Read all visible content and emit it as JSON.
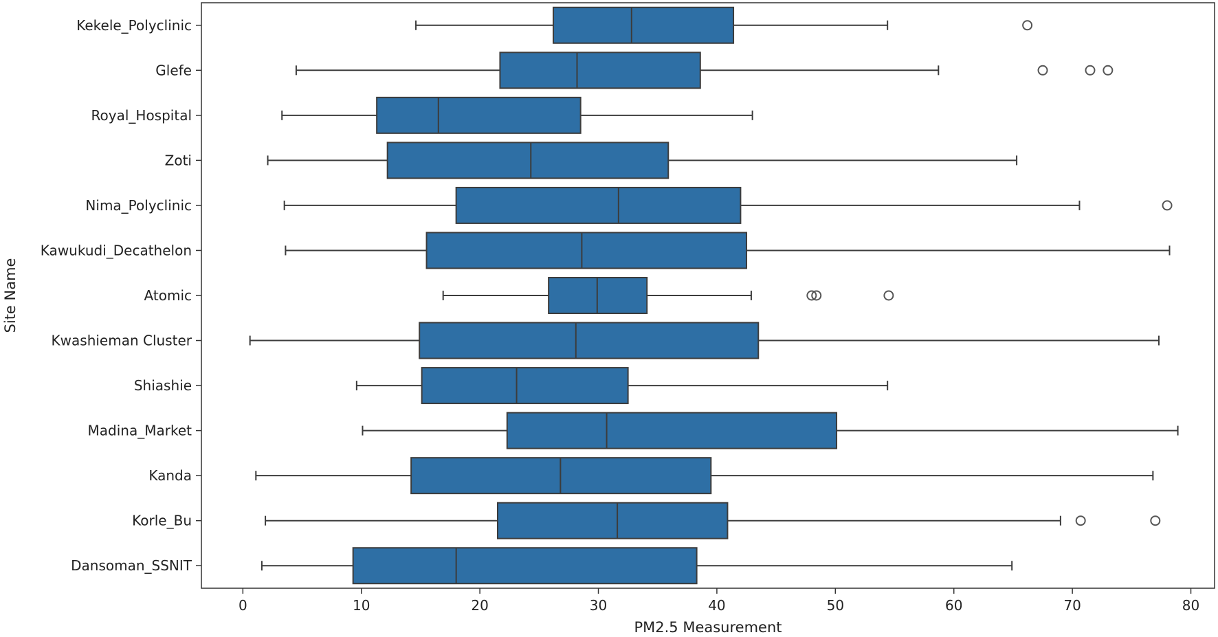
{
  "chart_data": {
    "type": "boxplot",
    "orientation": "horizontal",
    "xlabel": "PM2.5 Measurement",
    "ylabel": "Site Name",
    "xlim": [
      -3.5,
      82
    ],
    "xticks": [
      0,
      10,
      20,
      30,
      40,
      50,
      60,
      70,
      80
    ],
    "grid": false,
    "colors": {
      "box": "#2e6fa5",
      "line": "#3c3c3c",
      "outlier": "#555555"
    },
    "categories": [
      "Kekele_Polyclinic",
      "Glefe",
      "Royal_Hospital",
      "Zoti",
      "Nima_Polyclinic",
      "Kawukudi_Decathelon",
      "Atomic",
      "Kwashieman Cluster",
      "Shiashie",
      "Madina_Market",
      "Kanda",
      "Korle_Bu",
      "Dansoman_SSNIT"
    ],
    "boxes": [
      {
        "whisker_low": 14.6,
        "q1": 26.2,
        "median": 32.8,
        "q3": 41.4,
        "whisker_high": 54.4,
        "outliers": [
          66.2
        ]
      },
      {
        "whisker_low": 4.5,
        "q1": 21.7,
        "median": 28.2,
        "q3": 38.6,
        "whisker_high": 58.7,
        "outliers": [
          67.5,
          71.5,
          73.0
        ]
      },
      {
        "whisker_low": 3.3,
        "q1": 11.3,
        "median": 16.5,
        "q3": 28.5,
        "whisker_high": 43.0,
        "outliers": []
      },
      {
        "whisker_low": 2.1,
        "q1": 12.2,
        "median": 24.3,
        "q3": 35.9,
        "whisker_high": 65.3,
        "outliers": []
      },
      {
        "whisker_low": 3.5,
        "q1": 18.0,
        "median": 31.7,
        "q3": 42.0,
        "whisker_high": 70.6,
        "outliers": [
          78.0
        ]
      },
      {
        "whisker_low": 3.6,
        "q1": 15.5,
        "median": 28.6,
        "q3": 42.5,
        "whisker_high": 78.2,
        "outliers": []
      },
      {
        "whisker_low": 16.9,
        "q1": 25.8,
        "median": 29.9,
        "q3": 34.1,
        "whisker_high": 42.9,
        "outliers": [
          48.0,
          48.4,
          54.5
        ]
      },
      {
        "whisker_low": 0.6,
        "q1": 14.9,
        "median": 28.1,
        "q3": 43.5,
        "whisker_high": 77.3,
        "outliers": []
      },
      {
        "whisker_low": 9.6,
        "q1": 15.1,
        "median": 23.1,
        "q3": 32.5,
        "whisker_high": 54.4,
        "outliers": []
      },
      {
        "whisker_low": 10.1,
        "q1": 22.3,
        "median": 30.7,
        "q3": 50.1,
        "whisker_high": 78.9,
        "outliers": []
      },
      {
        "whisker_low": 1.1,
        "q1": 14.2,
        "median": 26.8,
        "q3": 39.5,
        "whisker_high": 76.8,
        "outliers": []
      },
      {
        "whisker_low": 1.9,
        "q1": 21.5,
        "median": 31.6,
        "q3": 40.9,
        "whisker_high": 69.0,
        "outliers": [
          70.7,
          77.0
        ]
      },
      {
        "whisker_low": 1.6,
        "q1": 9.3,
        "median": 18.0,
        "q3": 38.3,
        "whisker_high": 64.9,
        "outliers": []
      }
    ]
  }
}
